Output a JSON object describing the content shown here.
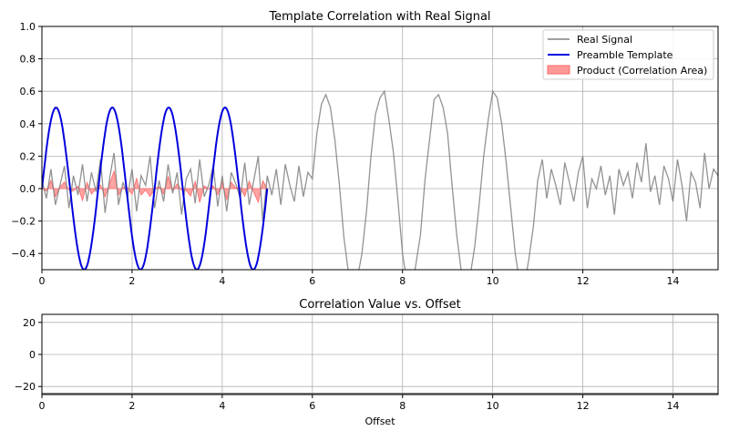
{
  "chart_data": [
    {
      "type": "line",
      "title": "Template Correlation with Real Signal",
      "xlabel": "",
      "ylabel": "",
      "xlim": [
        0,
        15
      ],
      "ylim": [
        -0.5,
        1.0
      ],
      "xticks": [
        "0",
        "2",
        "4",
        "6",
        "8",
        "10",
        "12",
        "14"
      ],
      "yticks": [
        "−0.4",
        "−0.2",
        "0.0",
        "0.2",
        "0.4",
        "0.6",
        "0.8",
        "1.0"
      ],
      "grid": true,
      "legend_position": "top-right",
      "legend": [
        "Real Signal",
        "Preamble Template",
        "Product (Correlation Area)"
      ],
      "colors": {
        "real": "#808080",
        "template": "#0000dd",
        "product": "#ff6666"
      },
      "real_signal": {
        "x_start": 0,
        "x_step": 0.1,
        "values": [
          0.05,
          -0.06,
          0.12,
          -0.1,
          0.02,
          0.14,
          -0.12,
          0.08,
          -0.04,
          0.15,
          -0.08,
          0.1,
          -0.02,
          0.18,
          -0.15,
          0.06,
          0.22,
          -0.1,
          0.04,
          -0.05,
          0.12,
          -0.14,
          0.08,
          0.02,
          0.2,
          -0.12,
          0.05,
          -0.08,
          0.15,
          -0.03,
          0.1,
          -0.16,
          0.06,
          0.12,
          -0.09,
          0.18,
          -0.05,
          0.02,
          0.14,
          -0.11,
          0.08,
          -0.14,
          0.1,
          0.03,
          -0.06,
          0.16,
          -0.1,
          0.05,
          0.2,
          -0.2,
          0.08,
          -0.04,
          0.12,
          -0.1,
          0.15,
          0.02,
          -0.08,
          0.14,
          -0.05,
          0.1,
          0.06,
          0.34,
          0.52,
          0.58,
          0.5,
          0.3,
          0.02,
          -0.3,
          -0.52,
          -0.62,
          -0.55,
          -0.4,
          -0.14,
          0.2,
          0.46,
          0.56,
          0.6,
          0.42,
          0.22,
          -0.08,
          -0.4,
          -0.58,
          -0.62,
          -0.46,
          -0.28,
          0.06,
          0.3,
          0.55,
          0.58,
          0.5,
          0.34,
          0.02,
          -0.28,
          -0.5,
          -0.62,
          -0.54,
          -0.36,
          -0.1,
          0.2,
          0.42,
          0.6,
          0.56,
          0.4,
          0.16,
          -0.12,
          -0.4,
          -0.58,
          -0.6,
          -0.44,
          -0.24,
          0.05,
          0.18,
          -0.06,
          0.12,
          0.02,
          -0.1,
          0.16,
          0.04,
          -0.08,
          0.1,
          0.2,
          -0.12,
          0.06,
          0.0,
          0.14,
          -0.04,
          0.08,
          -0.16,
          0.12,
          0.02,
          0.1,
          -0.06,
          0.16,
          0.04,
          0.28,
          -0.02,
          0.08,
          -0.1,
          0.14,
          0.06,
          -0.08,
          0.18,
          0.02,
          -0.2,
          0.1,
          0.04,
          -0.12,
          0.22,
          0.0,
          0.12,
          0.08
        ]
      },
      "preamble_template": {
        "amplitude": 0.5,
        "frequency": 0.8,
        "x_range": [
          0,
          5
        ]
      },
      "product": {
        "description_of_values": "template × real signal over 0–5"
      }
    },
    {
      "type": "line",
      "title": "Correlation Value vs. Offset",
      "xlabel": "Offset",
      "ylabel": "",
      "xlim": [
        0,
        15
      ],
      "ylim": [
        -25,
        25
      ],
      "xticks": [
        "0",
        "2",
        "4",
        "6",
        "8",
        "10",
        "12",
        "14"
      ],
      "yticks": [
        "−20",
        "0",
        "20"
      ],
      "grid": true,
      "series": []
    }
  ]
}
